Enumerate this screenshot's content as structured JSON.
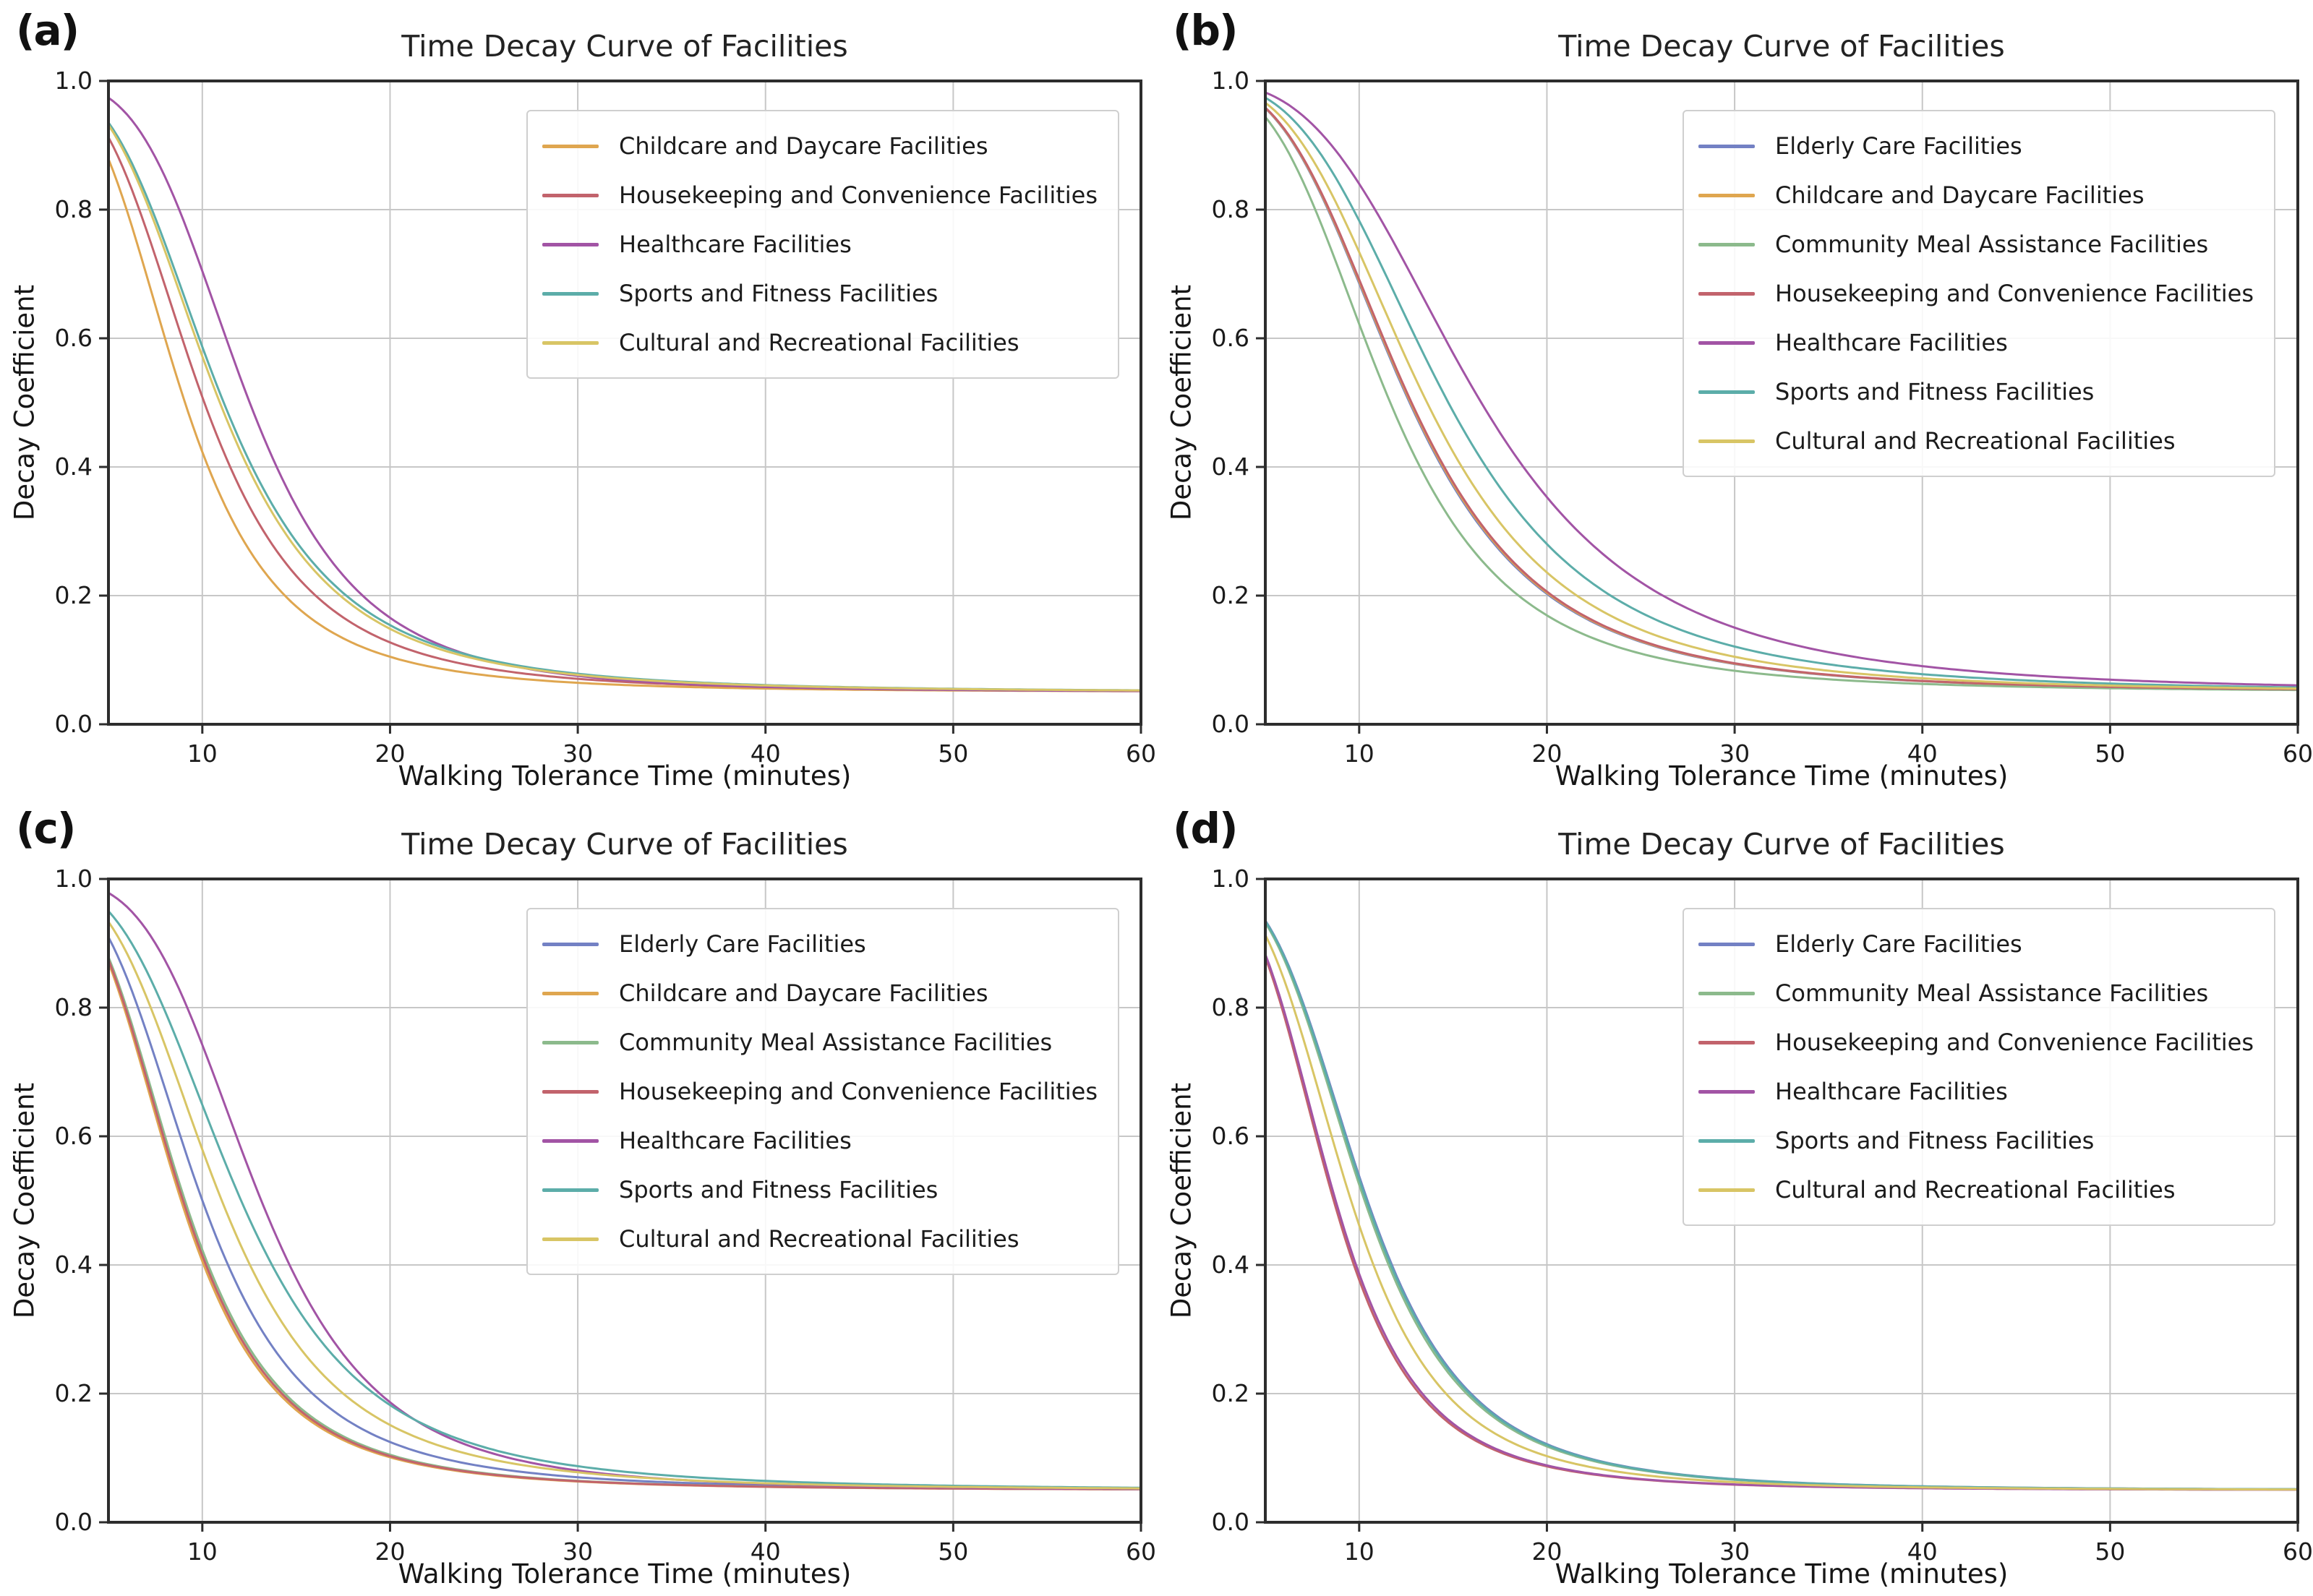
{
  "figure": {
    "background": "#ffffff",
    "axis_color": "#2d2d2d",
    "grid_color": "#c7c7c7",
    "text_color": "#1b1b1b"
  },
  "chart_data": [
    {
      "panel": "(a)",
      "type": "line",
      "title": "Time Decay Curve of Facilities",
      "xlabel": "Walking Tolerance Time (minutes)",
      "ylabel": "Decay Coefficient",
      "x_range": [
        5,
        60
      ],
      "y_range": [
        0.0,
        1.0
      ],
      "x_ticks": [
        10,
        20,
        30,
        40,
        50,
        60
      ],
      "y_ticks": [
        "0.0",
        "0.2",
        "0.4",
        "0.6",
        "0.8",
        "1.0"
      ],
      "grid": true,
      "legend_position": "upper right",
      "curve_model": "y = floor + amp / (1 + (t/m)^k)",
      "sample_x": [
        5,
        10,
        15,
        20,
        25,
        30,
        40,
        50,
        60
      ],
      "series": [
        {
          "name": "Childcare and Daycare Facilities",
          "color": "#dfa64f",
          "m": 8.8,
          "k": 3.4,
          "floor": 0.05,
          "amp": 0.95,
          "values": [
            0.88,
            0.42,
            0.18,
            0.105,
            0.077,
            0.065,
            0.056,
            0.053,
            0.051
          ]
        },
        {
          "name": "Housekeeping and Convenience Facilities",
          "color": "#c2636c",
          "m": 9.8,
          "k": 3.4,
          "floor": 0.05,
          "amp": 0.95,
          "values": [
            0.91,
            0.51,
            0.23,
            0.127,
            0.088,
            0.071,
            0.058,
            0.054,
            0.052
          ]
        },
        {
          "name": "Healthcare Facilities",
          "color": "#a254a5",
          "m": 12.2,
          "k": 4.0,
          "floor": 0.05,
          "amp": 0.95,
          "values": [
            0.97,
            0.7,
            0.34,
            0.166,
            0.101,
            0.075,
            0.058,
            0.053,
            0.052
          ]
        },
        {
          "name": "Sports and Fitness Facilities",
          "color": "#5cada9",
          "m": 10.8,
          "k": 3.4,
          "floor": 0.05,
          "amp": 0.95,
          "values": [
            0.93,
            0.59,
            0.28,
            0.154,
            0.102,
            0.079,
            0.061,
            0.055,
            0.053
          ]
        },
        {
          "name": "Cultural and Recreational Facilities",
          "color": "#d8c565",
          "m": 10.6,
          "k": 3.4,
          "floor": 0.05,
          "amp": 0.95,
          "values": [
            0.93,
            0.57,
            0.27,
            0.148,
            0.099,
            0.077,
            0.06,
            0.055,
            0.053
          ]
        }
      ]
    },
    {
      "panel": "(b)",
      "type": "line",
      "title": "Time Decay Curve of Facilities",
      "xlabel": "Walking Tolerance Time (minutes)",
      "ylabel": "Decay Coefficient",
      "x_range": [
        5,
        60
      ],
      "y_range": [
        0.0,
        1.0
      ],
      "x_ticks": [
        10,
        20,
        30,
        40,
        50,
        60
      ],
      "y_ticks": [
        "0.0",
        "0.2",
        "0.4",
        "0.6",
        "0.8",
        "1.0"
      ],
      "grid": true,
      "legend_position": "upper right",
      "curve_model": "y = floor + amp / (1 + (t/m)^k)",
      "sample_x": [
        5,
        10,
        15,
        20,
        25,
        30,
        40,
        50,
        60
      ],
      "series": [
        {
          "name": "Elderly Care Facilities",
          "color": "#7381c4",
          "m": 12.3,
          "k": 3.4,
          "floor": 0.05,
          "amp": 0.95,
          "values": [
            0.96,
            0.69,
            0.37,
            0.2,
            0.128,
            0.094,
            0.067,
            0.058,
            0.055
          ]
        },
        {
          "name": "Childcare and Daycare Facilities",
          "color": "#dfa64f",
          "m": 12.35,
          "k": 3.4,
          "floor": 0.05,
          "amp": 0.95,
          "values": [
            0.96,
            0.69,
            0.37,
            0.21,
            0.129,
            0.094,
            0.067,
            0.058,
            0.055
          ]
        },
        {
          "name": "Community Meal Assistance Facilities",
          "color": "#8cba8c",
          "m": 11.3,
          "k": 3.4,
          "floor": 0.05,
          "amp": 0.95,
          "values": [
            0.94,
            0.62,
            0.31,
            0.17,
            0.11,
            0.083,
            0.063,
            0.056,
            0.053
          ]
        },
        {
          "name": "Housekeeping and Convenience Facilities",
          "color": "#c2636c",
          "m": 12.4,
          "k": 3.4,
          "floor": 0.05,
          "amp": 0.95,
          "values": [
            0.96,
            0.69,
            0.38,
            0.21,
            0.13,
            0.095,
            0.068,
            0.058,
            0.055
          ]
        },
        {
          "name": "Healthcare Facilities",
          "color": "#a254a5",
          "m": 16.0,
          "k": 3.4,
          "floor": 0.05,
          "amp": 0.95,
          "values": [
            0.98,
            0.84,
            0.58,
            0.35,
            0.221,
            0.15,
            0.09,
            0.069,
            0.061
          ]
        },
        {
          "name": "Sports and Fitness Facilities",
          "color": "#5cada9",
          "m": 14.3,
          "k": 3.4,
          "floor": 0.05,
          "amp": 0.95,
          "values": [
            0.97,
            0.78,
            0.49,
            0.28,
            0.174,
            0.121,
            0.078,
            0.063,
            0.057
          ]
        },
        {
          "name": "Cultural and Recreational Facilities",
          "color": "#d8c565",
          "m": 13.2,
          "k": 3.4,
          "floor": 0.05,
          "amp": 0.95,
          "values": [
            0.97,
            0.73,
            0.42,
            0.24,
            0.147,
            0.105,
            0.071,
            0.06,
            0.056
          ]
        }
      ]
    },
    {
      "panel": "(c)",
      "type": "line",
      "title": "Time Decay Curve of Facilities",
      "xlabel": "Walking Tolerance Time (minutes)",
      "ylabel": "Decay Coefficient",
      "x_range": [
        5,
        60
      ],
      "y_range": [
        0.0,
        1.0
      ],
      "x_ticks": [
        10,
        20,
        30,
        40,
        50,
        60
      ],
      "y_ticks": [
        "0.0",
        "0.2",
        "0.4",
        "0.6",
        "0.8",
        "1.0"
      ],
      "grid": true,
      "legend_position": "upper right",
      "curve_model": "y = floor + amp / (1 + (t/m)^k)",
      "sample_x": [
        5,
        10,
        15,
        20,
        25,
        30,
        40,
        50,
        60
      ],
      "series": [
        {
          "name": "Elderly Care Facilities",
          "color": "#7381c4",
          "m": 9.7,
          "k": 3.4,
          "floor": 0.05,
          "amp": 0.95,
          "values": [
            0.91,
            0.5,
            0.23,
            0.125,
            0.087,
            0.07,
            0.058,
            0.054,
            0.052
          ]
        },
        {
          "name": "Childcare and Daycare Facilities",
          "color": "#dfa64f",
          "m": 8.6,
          "k": 3.4,
          "floor": 0.05,
          "amp": 0.95,
          "values": [
            0.87,
            0.41,
            0.17,
            0.101,
            0.075,
            0.063,
            0.055,
            0.052,
            0.051
          ]
        },
        {
          "name": "Community Meal Assistance Facilities",
          "color": "#8cba8c",
          "m": 8.8,
          "k": 3.4,
          "floor": 0.05,
          "amp": 0.95,
          "values": [
            0.88,
            0.42,
            0.18,
            0.105,
            0.077,
            0.065,
            0.056,
            0.053,
            0.051
          ]
        },
        {
          "name": "Housekeeping and Convenience Facilities",
          "color": "#c2636c",
          "m": 8.7,
          "k": 3.4,
          "floor": 0.05,
          "amp": 0.95,
          "values": [
            0.87,
            0.41,
            0.18,
            0.103,
            0.076,
            0.064,
            0.055,
            0.052,
            0.051
          ]
        },
        {
          "name": "Healthcare Facilities",
          "color": "#a254a5",
          "m": 12.8,
          "k": 4.0,
          "floor": 0.05,
          "amp": 0.95,
          "values": [
            0.98,
            0.74,
            0.38,
            0.187,
            0.111,
            0.081,
            0.06,
            0.054,
            0.052
          ]
        },
        {
          "name": "Sports and Fitness Facilities",
          "color": "#5cada9",
          "m": 11.7,
          "k": 3.4,
          "floor": 0.05,
          "amp": 0.95,
          "values": [
            0.95,
            0.65,
            0.34,
            0.18,
            0.117,
            0.087,
            0.064,
            0.057,
            0.054
          ]
        },
        {
          "name": "Cultural and Recreational Facilities",
          "color": "#d8c565",
          "m": 10.7,
          "k": 3.4,
          "floor": 0.05,
          "amp": 0.95,
          "values": [
            0.93,
            0.58,
            0.28,
            0.151,
            0.1,
            0.078,
            0.061,
            0.055,
            0.053
          ]
        }
      ]
    },
    {
      "panel": "(d)",
      "type": "line",
      "title": "Time Decay Curve of Facilities",
      "xlabel": "Walking Tolerance Time (minutes)",
      "ylabel": "Decay Coefficient",
      "x_range": [
        5,
        60
      ],
      "y_range": [
        0.0,
        1.0
      ],
      "x_ticks": [
        10,
        20,
        30,
        40,
        50,
        60
      ],
      "y_ticks": [
        "0.0",
        "0.2",
        "0.4",
        "0.6",
        "0.8",
        "1.0"
      ],
      "grid": true,
      "legend_position": "upper right",
      "curve_model": "y = floor + amp / (1 + (t/m)^k)",
      "sample_x": [
        5,
        10,
        15,
        20,
        25,
        30,
        40,
        50,
        60
      ],
      "series": [
        {
          "name": "Elderly Care Facilities",
          "color": "#7381c4",
          "m": 10.15,
          "k": 3.7,
          "floor": 0.05,
          "amp": 0.95,
          "values": [
            0.93,
            0.54,
            0.23,
            0.12,
            0.084,
            0.069,
            0.057,
            0.053,
            0.052
          ]
        },
        {
          "name": "Community Meal Assistance Facilities",
          "color": "#8cba8c",
          "m": 10.0,
          "k": 3.7,
          "floor": 0.05,
          "amp": 0.95,
          "values": [
            0.93,
            0.52,
            0.22,
            0.115,
            0.082,
            0.068,
            0.057,
            0.053,
            0.052
          ]
        },
        {
          "name": "Housekeeping and Convenience Facilities",
          "color": "#c2636c",
          "m": 8.4,
          "k": 3.7,
          "floor": 0.05,
          "amp": 0.95,
          "values": [
            0.88,
            0.37,
            0.15,
            0.085,
            0.066,
            0.059,
            0.053,
            0.052,
            0.051
          ]
        },
        {
          "name": "Healthcare Facilities",
          "color": "#a254a5",
          "m": 8.5,
          "k": 3.7,
          "floor": 0.05,
          "amp": 0.95,
          "values": [
            0.88,
            0.38,
            0.15,
            0.087,
            0.067,
            0.059,
            0.053,
            0.052,
            0.051
          ]
        },
        {
          "name": "Sports and Fitness Facilities",
          "color": "#5cada9",
          "m": 10.1,
          "k": 3.7,
          "floor": 0.05,
          "amp": 0.95,
          "values": [
            0.93,
            0.53,
            0.23,
            0.118,
            0.083,
            0.068,
            0.057,
            0.053,
            0.052
          ]
        },
        {
          "name": "Cultural and Recreational Facilities",
          "color": "#d8c565",
          "m": 9.3,
          "k": 3.7,
          "floor": 0.05,
          "amp": 0.95,
          "values": [
            0.9,
            0.46,
            0.19,
            0.104,
            0.074,
            0.063,
            0.055,
            0.052,
            0.051
          ]
        }
      ]
    }
  ]
}
